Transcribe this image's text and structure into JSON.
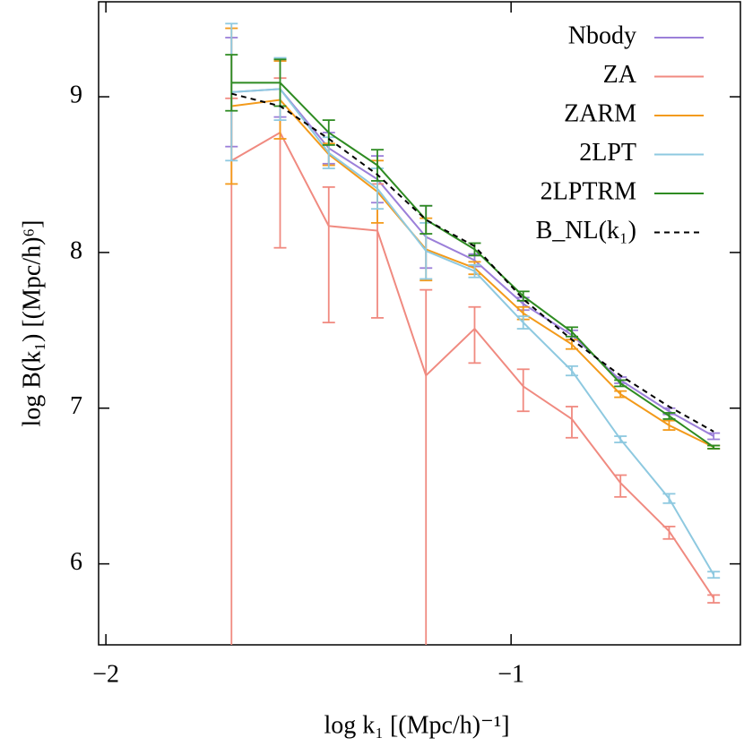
{
  "chart_data": {
    "type": "line",
    "x_label": "log k₁ [(Mpc/h)⁻¹]",
    "y_label": "log B(k₁) [(Mpc/h)⁶]",
    "x": [
      -1.69,
      -1.57,
      -1.45,
      -1.33,
      -1.21,
      -1.09,
      -0.97,
      -0.85,
      -0.73,
      -0.61,
      -0.5
    ],
    "series": [
      {
        "name": "Nbody",
        "color": "#9b7fd9",
        "values": [
          9.03,
          9.05,
          8.67,
          8.47,
          8.1,
          7.95,
          7.67,
          7.47,
          7.18,
          6.98,
          6.82
        ],
        "errors": [
          0.35,
          0.18,
          0.1,
          0.15,
          0.2,
          0.04,
          0.04,
          0.03,
          0.02,
          0.02,
          0.02
        ]
      },
      {
        "name": "ZA",
        "color": "#f08a80",
        "values": [
          8.59,
          8.77,
          8.17,
          8.14,
          7.21,
          7.51,
          7.14,
          6.93,
          6.52,
          6.21,
          5.78
        ],
        "errors_low": [
          3.2,
          0.74,
          0.62,
          0.56,
          1.8,
          0.22,
          0.16,
          0.12,
          0.09,
          0.05,
          0.03
        ],
        "errors_high": [
          0.4,
          0.35,
          0.25,
          0.3,
          0.55,
          0.14,
          0.11,
          0.08,
          0.05,
          0.03,
          0.02
        ]
      },
      {
        "name": "ZARM",
        "color": "#f39a1a",
        "values": [
          8.94,
          8.98,
          8.63,
          8.39,
          8.02,
          7.9,
          7.61,
          7.41,
          7.09,
          6.89,
          6.75
        ],
        "errors": [
          0.5,
          0.25,
          0.07,
          0.2,
          0.2,
          0.04,
          0.04,
          0.03,
          0.02,
          0.03,
          0.01
        ]
      },
      {
        "name": "2LPT",
        "color": "#8ec9e0",
        "values": [
          9.03,
          9.05,
          8.64,
          8.41,
          8.01,
          7.88,
          7.55,
          7.24,
          6.8,
          6.42,
          5.93
        ],
        "errors": [
          0.44,
          0.2,
          0.1,
          0.13,
          0.18,
          0.04,
          0.04,
          0.03,
          0.02,
          0.03,
          0.02
        ]
      },
      {
        "name": "2LPTRM",
        "color": "#2e8b22",
        "values": [
          9.09,
          9.09,
          8.77,
          8.56,
          8.21,
          8.02,
          7.72,
          7.49,
          7.16,
          6.95,
          6.75
        ],
        "errors": [
          0.18,
          0.15,
          0.08,
          0.1,
          0.09,
          0.04,
          0.03,
          0.03,
          0.02,
          0.02,
          0.01
        ]
      },
      {
        "name": "B_NL(k₁)",
        "color": "#000000",
        "dash": true,
        "values": [
          9.02,
          8.94,
          8.73,
          8.5,
          8.21,
          8.04,
          7.7,
          7.44,
          7.21,
          7.01,
          6.85
        ]
      }
    ],
    "xlim": [
      -2.018,
      -0.434
    ],
    "ylim": [
      5.48,
      9.61
    ],
    "xticks": [
      {
        "value": -2,
        "label": "−2"
      },
      {
        "value": -1,
        "label": "−1"
      }
    ],
    "yticks": [
      6,
      7,
      8,
      9
    ],
    "legend": "upper right"
  }
}
